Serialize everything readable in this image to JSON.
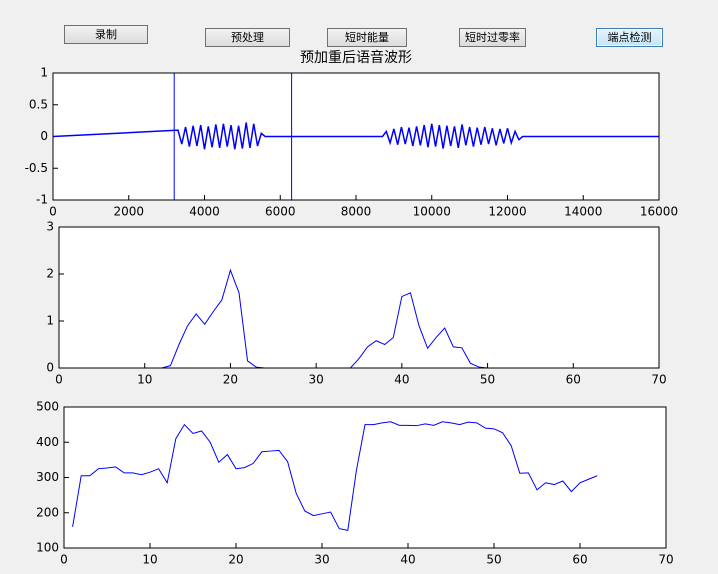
{
  "buttons": [
    "录制",
    "预处理",
    "短时能量",
    "短时过零率",
    "端点检测"
  ],
  "chart_data": [
    {
      "type": "line",
      "title": "预加重后语音波形",
      "xlim": [
        0,
        16000
      ],
      "xticks": [
        0,
        2000,
        4000,
        6000,
        8000,
        10000,
        12000,
        14000,
        16000
      ],
      "ylim": [
        -1,
        1
      ],
      "yticks": [
        -1,
        -0.5,
        0,
        0.5,
        1
      ],
      "vlines": [
        3200,
        6300
      ],
      "series": [
        {
          "color": "#0000ff",
          "x": [
            0,
            3300,
            3400,
            3500,
            3600,
            3700,
            3800,
            3900,
            4000,
            4100,
            4200,
            4300,
            4400,
            4500,
            4600,
            4700,
            4800,
            4900,
            5000,
            5100,
            5200,
            5300,
            5400,
            5500,
            5600,
            8700,
            8800,
            8900,
            9000,
            9100,
            9200,
            9300,
            9400,
            9500,
            9600,
            9700,
            9800,
            9900,
            10000,
            10100,
            10200,
            10300,
            10400,
            10500,
            10600,
            10700,
            10800,
            10900,
            11000,
            11100,
            11200,
            11300,
            11400,
            11500,
            11600,
            11700,
            11800,
            11900,
            12000,
            12100,
            12200,
            12300,
            12400,
            16000
          ],
          "values": [
            0,
            0.1,
            -0.12,
            0.15,
            -0.16,
            0.17,
            -0.15,
            0.18,
            -0.2,
            0.16,
            -0.17,
            0.19,
            -0.18,
            0.2,
            -0.16,
            0.18,
            -0.2,
            0.17,
            -0.19,
            0.22,
            -0.18,
            0.2,
            -0.15,
            0.05,
            0,
            0,
            0.08,
            -0.1,
            0.12,
            -0.13,
            0.15,
            -0.12,
            0.14,
            -0.15,
            0.16,
            -0.14,
            0.18,
            -0.17,
            0.2,
            -0.16,
            0.18,
            -0.19,
            0.17,
            -0.15,
            0.16,
            -0.18,
            0.19,
            -0.14,
            0.15,
            -0.16,
            0.14,
            -0.13,
            0.15,
            -0.12,
            0.13,
            -0.14,
            0.12,
            -0.11,
            0.13,
            -0.1,
            0.08,
            -0.05,
            0,
            0
          ]
        }
      ]
    },
    {
      "type": "line",
      "xlim": [
        0,
        70
      ],
      "xticks": [
        0,
        10,
        20,
        30,
        40,
        50,
        60,
        70
      ],
      "ylim": [
        0,
        3
      ],
      "yticks": [
        0,
        1,
        2,
        3
      ],
      "series": [
        {
          "color": "#0000ff",
          "x": [
            1,
            2,
            3,
            4,
            5,
            6,
            7,
            8,
            9,
            10,
            11,
            12,
            13,
            14,
            15,
            16,
            17,
            18,
            19,
            20,
            21,
            22,
            23,
            24,
            25,
            26,
            27,
            28,
            29,
            30,
            31,
            32,
            33,
            34,
            35,
            36,
            37,
            38,
            39,
            40,
            41,
            42,
            43,
            44,
            45,
            46,
            47,
            48,
            49,
            50,
            51,
            52,
            53,
            54,
            55,
            56,
            57,
            58,
            59,
            60,
            61,
            62
          ],
          "values": [
            0,
            0,
            0,
            0,
            0,
            0,
            0,
            0,
            0,
            0,
            0,
            0,
            0.05,
            0.5,
            0.9,
            1.15,
            0.93,
            1.2,
            1.45,
            2.08,
            1.6,
            0.15,
            0.02,
            0,
            0,
            0,
            0,
            0,
            0,
            0,
            0,
            0,
            0,
            0,
            0.2,
            0.45,
            0.58,
            0.5,
            0.65,
            1.52,
            1.6,
            0.9,
            0.42,
            0.65,
            0.85,
            0.45,
            0.43,
            0.1,
            0.02,
            0,
            0,
            0,
            0,
            0,
            0,
            0,
            0,
            0,
            0,
            0,
            0,
            0
          ]
        }
      ]
    },
    {
      "type": "line",
      "xlim": [
        0,
        70
      ],
      "xticks": [
        0,
        10,
        20,
        30,
        40,
        50,
        60,
        70
      ],
      "ylim": [
        100,
        500
      ],
      "yticks": [
        100,
        200,
        300,
        400,
        500
      ],
      "series": [
        {
          "color": "#0000ff",
          "x": [
            1,
            2,
            3,
            4,
            5,
            6,
            7,
            8,
            9,
            10,
            11,
            12,
            13,
            14,
            15,
            16,
            17,
            18,
            19,
            20,
            21,
            22,
            23,
            24,
            25,
            26,
            27,
            28,
            29,
            30,
            31,
            32,
            33,
            34,
            35,
            36,
            37,
            38,
            39,
            40,
            41,
            42,
            43,
            44,
            45,
            46,
            47,
            48,
            49,
            50,
            51,
            52,
            53,
            54,
            55,
            56,
            57,
            58,
            59,
            60,
            61,
            62
          ],
          "values": [
            160,
            305,
            305,
            325,
            327,
            330,
            313,
            313,
            308,
            315,
            325,
            285,
            410,
            450,
            425,
            432,
            400,
            343,
            365,
            325,
            328,
            340,
            373,
            375,
            377,
            345,
            255,
            205,
            192,
            197,
            202,
            155,
            150,
            320,
            450,
            450,
            455,
            458,
            448,
            448,
            447,
            452,
            448,
            458,
            455,
            450,
            457,
            455,
            440,
            438,
            427,
            390,
            312,
            313,
            265,
            285,
            280,
            290,
            260,
            285,
            295,
            305
          ]
        }
      ]
    }
  ]
}
